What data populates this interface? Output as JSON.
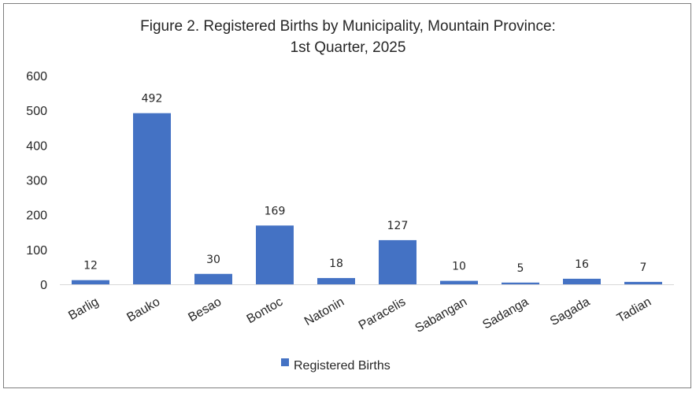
{
  "chart_data": {
    "type": "bar",
    "title_line1": "Figure 2. Registered Births by Municipality,  Mountain Province:",
    "title_line2": "1st Quarter, 2025",
    "categories": [
      "Barlig",
      "Bauko",
      "Besao",
      "Bontoc",
      "Natonin",
      "Paracelis",
      "Sabangan",
      "Sadanga",
      "Sagada",
      "Tadian"
    ],
    "series": [
      {
        "name": "Registered Births",
        "values": [
          12,
          492,
          30,
          169,
          18,
          127,
          10,
          5,
          16,
          7
        ],
        "color": "#4472c4"
      }
    ],
    "ylim": [
      0,
      600
    ],
    "yticks": [
      0,
      100,
      200,
      300,
      400,
      500,
      600
    ],
    "grid": false,
    "legend": "bottom",
    "data_labels": true
  }
}
